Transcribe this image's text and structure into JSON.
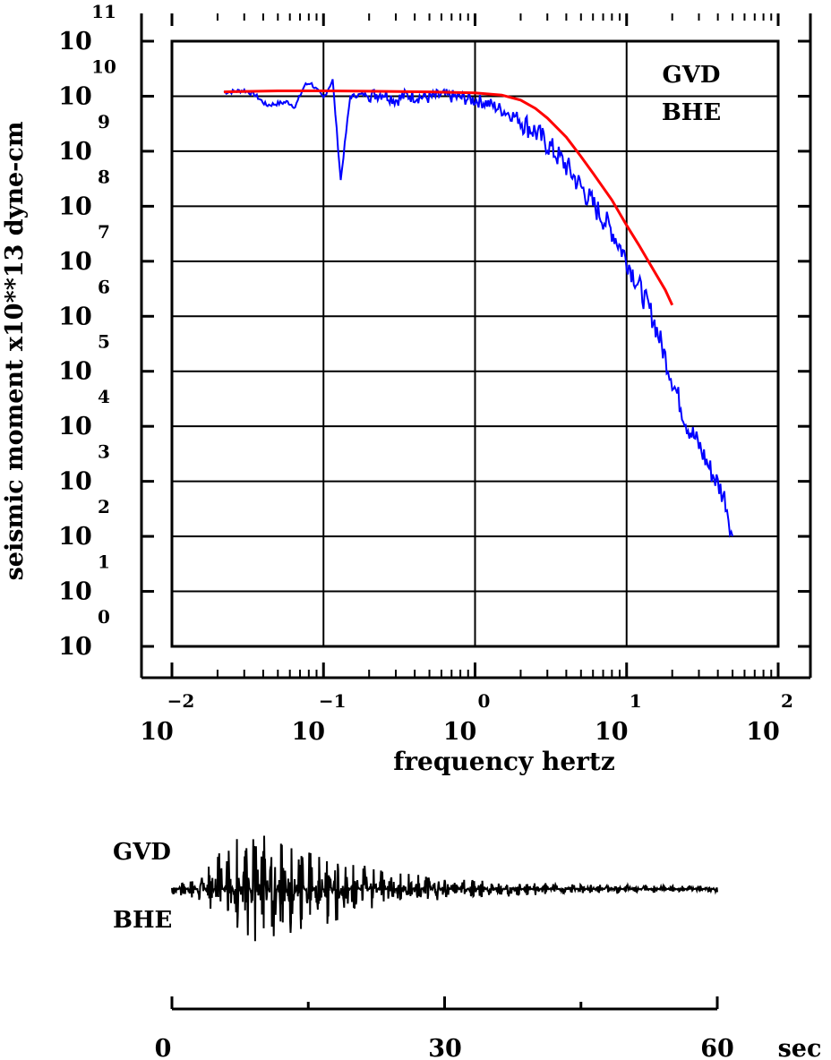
{
  "chart_data": [
    {
      "type": "line",
      "title": "",
      "labels": [
        "GVD",
        "BHE"
      ],
      "xlabel": "frequency  hertz",
      "ylabel": "seismic moment x10**13 dyne-cm",
      "xscale": "log",
      "yscale": "log",
      "xlim": [
        0.01,
        100
      ],
      "ylim": [
        1,
        100000000000
      ],
      "grid": true,
      "x_ticks": [
        {
          "base": "10",
          "exp": "−2"
        },
        {
          "base": "10",
          "exp": "−1"
        },
        {
          "base": "10",
          "exp": "0"
        },
        {
          "base": "10",
          "exp": "1"
        },
        {
          "base": "10",
          "exp": "2"
        }
      ],
      "y_ticks": [
        {
          "base": "10",
          "exp": "11"
        },
        {
          "base": "10",
          "exp": "10"
        },
        {
          "base": "10",
          "exp": "9"
        },
        {
          "base": "10",
          "exp": "8"
        },
        {
          "base": "10",
          "exp": "7"
        },
        {
          "base": "10",
          "exp": "6"
        },
        {
          "base": "10",
          "exp": "5"
        },
        {
          "base": "10",
          "exp": "4"
        },
        {
          "base": "10",
          "exp": "3"
        },
        {
          "base": "10",
          "exp": "2"
        },
        {
          "base": "10",
          "exp": "1"
        },
        {
          "base": "10",
          "exp": "0"
        }
      ],
      "series": [
        {
          "kind": "observed spectrum",
          "color": "#0000ff",
          "x": [
            0.022,
            0.03,
            0.035,
            0.042,
            0.05,
            0.058,
            0.065,
            0.075,
            0.082,
            0.1,
            0.115,
            0.13,
            0.15,
            0.18,
            0.2,
            0.25,
            0.3,
            0.35,
            0.4,
            0.5,
            0.6,
            0.8,
            1.0,
            1.2,
            1.5,
            2.0,
            2.5,
            3.0,
            4.0,
            5.0,
            6.0,
            8.0,
            10.0,
            12.0,
            15.0,
            18.0,
            20.0,
            25.0,
            30.0,
            35.0,
            40.0,
            45.0,
            48.0,
            50.0
          ],
          "y": [
            12000000000.0,
            13000000000.0,
            11000000000.0,
            7000000000.0,
            7500000000.0,
            8000000000.0,
            6500000000.0,
            16000000000.0,
            18000000000.0,
            9500000000.0,
            20000000000.0,
            300000000.0,
            10000000000.0,
            11000000000.0,
            11000000000.0,
            12000000000.0,
            9000000000.0,
            11000000000.0,
            10500000000.0,
            10000000000.0,
            11000000000.0,
            10000000000.0,
            9000000000.0,
            8000000000.0,
            6000000000.0,
            4000000000.0,
            2500000000.0,
            1500000000.0,
            600000000.0,
            250000000.0,
            120000000.0,
            40000000.0,
            12000000.0,
            4000000.0,
            1000000.0,
            200000.0,
            80000.0,
            12000.0,
            5000.0,
            2000.0,
            1000.0,
            500,
            200,
            100
          ]
        },
        {
          "kind": "model fit",
          "color": "#ff0000",
          "x": [
            0.022,
            0.05,
            0.1,
            0.2,
            0.5,
            1.0,
            1.5,
            2.0,
            2.5,
            3.0,
            4.0,
            5.0,
            6.0,
            8.0,
            10.0,
            12.0,
            15.0,
            18.0,
            20.0
          ],
          "y": [
            12000000000.0,
            12500000000.0,
            12500000000.0,
            12300000000.0,
            12000000000.0,
            11500000000.0,
            10500000000.0,
            8500000000.0,
            6000000000.0,
            4000000000.0,
            1800000000.0,
            800000000.0,
            400000000.0,
            130000000.0,
            45000000.0,
            20000000.0,
            7000000.0,
            3000000.0,
            1600000.0
          ]
        }
      ]
    },
    {
      "type": "line",
      "title": "",
      "labels": [
        "GVD",
        "BHE"
      ],
      "xlabel": "",
      "ylabel": "",
      "xlim": [
        0,
        60
      ],
      "x_ticks": [
        "0",
        "30",
        "60"
      ],
      "x_unit": "sec",
      "series": [
        {
          "kind": "seismogram",
          "color": "#000000"
        }
      ]
    }
  ]
}
